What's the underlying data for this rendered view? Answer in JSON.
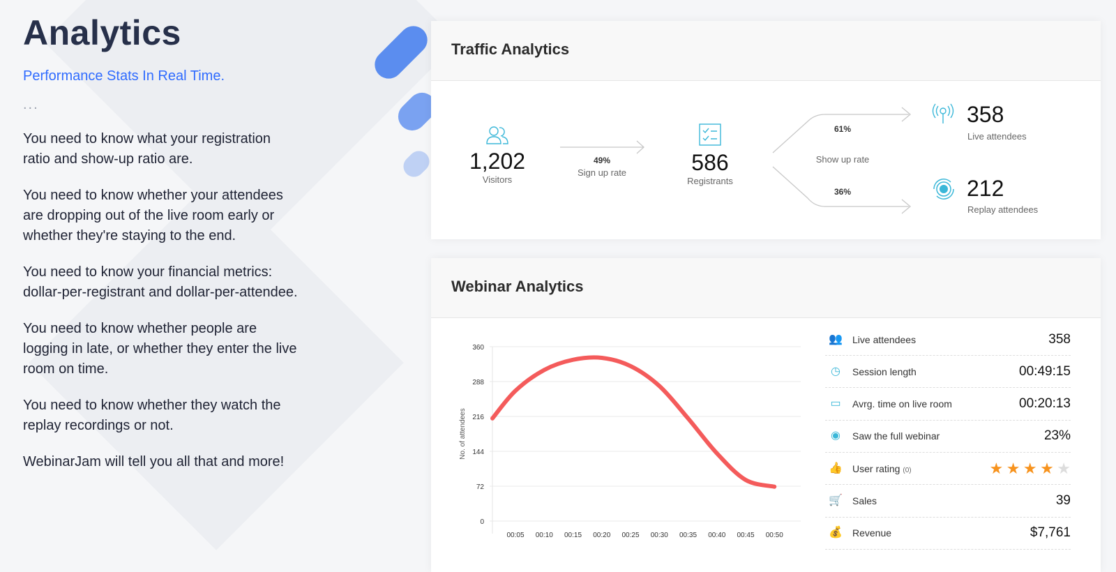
{
  "left": {
    "title": "Analytics",
    "subtitle": "Performance Stats In Real Time.",
    "dots": "...",
    "paragraphs": [
      "You need to know what your registration ratio and show-up ratio are.",
      "You need to know whether your attendees are dropping out of the live room early or whether they're staying to the end.",
      "You need to know your financial metrics: dollar-per-registrant and dollar-per-attendee.",
      "You need to know whether people are logging in late, or whether they enter the live room on time.",
      "You need to know whether they watch the replay recordings or not.",
      "WebinarJam will tell you all that and more!"
    ]
  },
  "traffic": {
    "title": "Traffic Analytics",
    "visitors": {
      "value": "1,202",
      "label": "Visitors"
    },
    "signup": {
      "pct": "49%",
      "label": "Sign up rate"
    },
    "registrants": {
      "value": "586",
      "label": "Registrants"
    },
    "showup": {
      "label": "Show up rate",
      "live_pct": "61%",
      "replay_pct": "36%"
    },
    "live": {
      "value": "358",
      "label": "Live attendees"
    },
    "replay": {
      "value": "212",
      "label": "Replay attendees"
    }
  },
  "webinar": {
    "title": "Webinar Analytics",
    "stats": [
      {
        "icon": "users-icon",
        "label": "Live attendees",
        "value": "358"
      },
      {
        "icon": "clock-icon",
        "label": "Session length",
        "value": "00:49:15"
      },
      {
        "icon": "calendar-clock-icon",
        "label": "Avrg. time on live room",
        "value": "00:20:13"
      },
      {
        "icon": "eye-icon",
        "label": "Saw the full webinar",
        "value": "23%"
      },
      {
        "icon": "thumbs-up-icon",
        "label": "User rating",
        "count": "(0)",
        "rating": 4,
        "max": 5
      },
      {
        "icon": "cart-icon",
        "label": "Sales",
        "value": "39"
      },
      {
        "icon": "money-bag-icon",
        "label": "Revenue",
        "value": "$7,761"
      }
    ]
  },
  "chart_data": {
    "type": "line",
    "ylabel": "No. of attendees",
    "ylim": [
      0,
      360
    ],
    "yticks": [
      "0",
      "72",
      "144",
      "216",
      "288",
      "360"
    ],
    "xticks": [
      "00:05",
      "00:10",
      "00:15",
      "00:20",
      "00:25",
      "00:30",
      "00:35",
      "00:40",
      "00:45",
      "00:50"
    ],
    "x_minutes": [
      1,
      5,
      10,
      15,
      20,
      25,
      30,
      35,
      40,
      45,
      50
    ],
    "values": [
      212,
      269,
      312,
      333,
      337,
      320,
      279,
      212,
      140,
      85,
      71
    ],
    "color": "#f45b5b",
    "grid": true
  }
}
